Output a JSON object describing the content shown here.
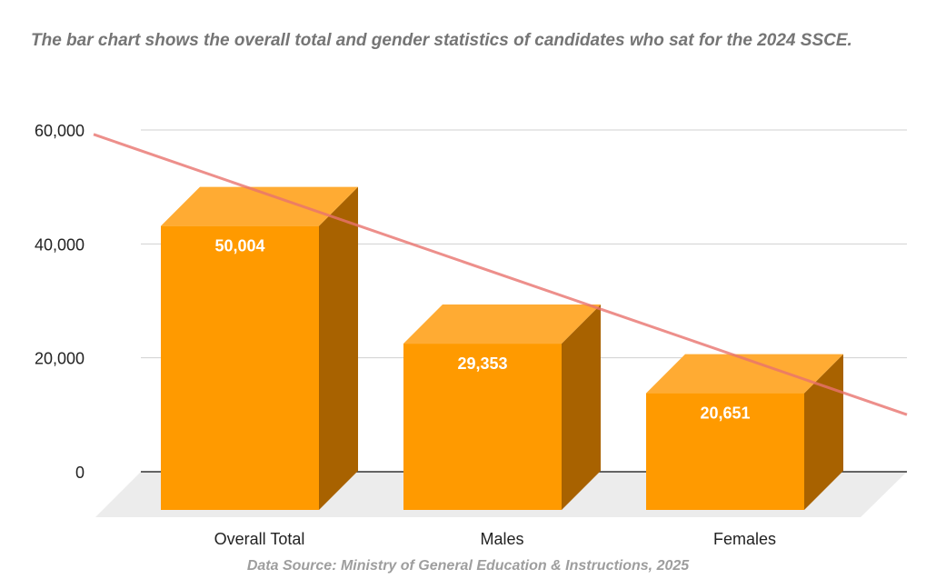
{
  "chart_data": {
    "type": "bar",
    "title": "The bar chart shows the overall total and gender statistics of candidates who sat for the 2024 SSCE.",
    "categories": [
      "Overall Total",
      "Males",
      "Females"
    ],
    "values": [
      50004,
      29353,
      20651
    ],
    "data_labels": [
      "50,004",
      "29,353",
      "20,651"
    ],
    "ylim": [
      0,
      60000
    ],
    "yticks": [
      0,
      20000,
      40000,
      60000
    ],
    "ytick_labels": [
      "0",
      "20,000",
      "40,000",
      "60,000"
    ],
    "xlabel": "",
    "ylabel": "",
    "grid": true,
    "trendline": "linear",
    "source": "Data Source: Ministry of General Education & Instructions, 2025"
  },
  "colors": {
    "bar_front": "#ff9a00",
    "bar_top": "#ffab33",
    "bar_side": "#a86200",
    "floor": "#ececec",
    "grid": "#d0d0d0",
    "axis": "#333333",
    "trendline": "#e8736e"
  }
}
